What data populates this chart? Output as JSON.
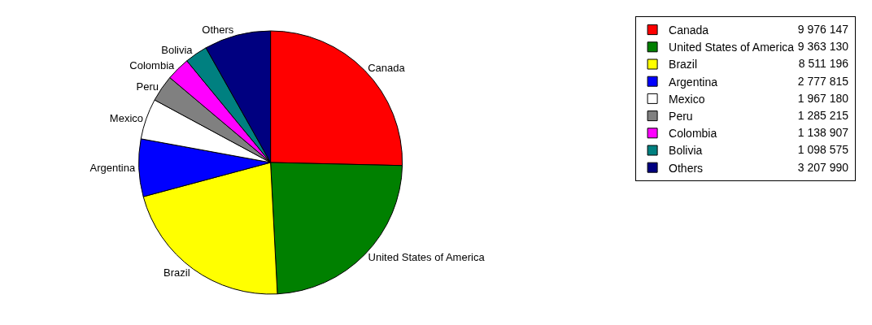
{
  "chart_data": {
    "type": "pie",
    "categories": [
      "Canada",
      "United States of America",
      "Brazil",
      "Argentina",
      "Mexico",
      "Peru",
      "Colombia",
      "Bolivia",
      "Others"
    ],
    "values": [
      9976147,
      9363130,
      8511196,
      2777815,
      1967180,
      1285215,
      1138907,
      1098575,
      3207990
    ],
    "value_labels": [
      "9 976 147",
      "9 363 130",
      "8 511 196",
      "2 777 815",
      "1 967 180",
      "1 285 215",
      "1 138 907",
      "1 098 575",
      "3 207 990"
    ],
    "colors": [
      "#ff0000",
      "#008000",
      "#ffff00",
      "#0000ff",
      "#ffffff",
      "#808080",
      "#ff00ff",
      "#008080",
      "#000080"
    ],
    "legend": "top right"
  }
}
